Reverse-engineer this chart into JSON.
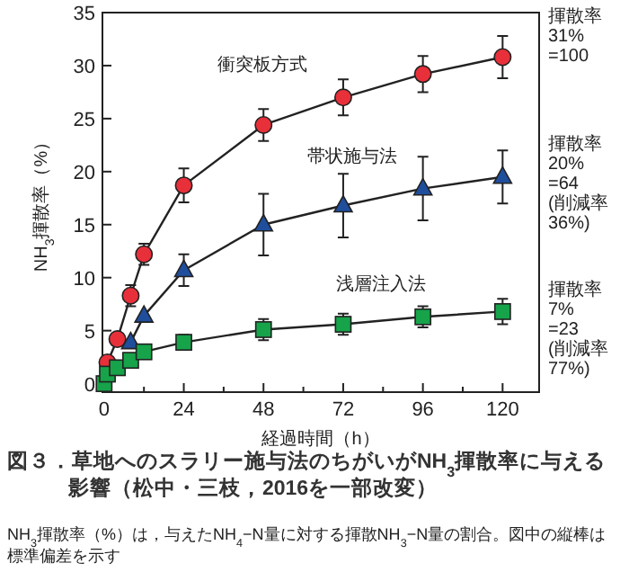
{
  "chart_data": {
    "type": "line",
    "title": "図３．草地へのスラリー施与法のちがいがNH$_{3}$揮散率に与える影響（松中・三枝，2016を一部改変）",
    "xlabel": "経過時間（h）",
    "ylabel": "NH$_{3}$揮散率（%）",
    "xlim": [
      -0.5,
      131
    ],
    "ylim": [
      -0.8,
      35
    ],
    "xticks": [
      0,
      {
        "value": 12,
        "label": null
      },
      24,
      {
        "value": 36,
        "label": null
      },
      48,
      {
        "value": 60,
        "label": null
      },
      72,
      {
        "value": 84,
        "label": null
      },
      96,
      {
        "value": 108,
        "label": null
      },
      120
    ],
    "yticks": [
      0,
      5,
      10,
      15,
      20,
      25,
      30,
      35
    ],
    "grid": false,
    "legend": false,
    "line_style": "solid",
    "series": [
      {
        "name": "衝突板方式",
        "color": "#e8303a",
        "marker": "circle",
        "x": [
          1,
          4,
          8,
          12,
          24,
          48,
          72,
          96,
          120
        ],
        "values": [
          2.0,
          4.2,
          8.3,
          12.2,
          18.7,
          24.4,
          27.0,
          29.2,
          30.8
        ],
        "errors": [
          null,
          null,
          1.0,
          1.0,
          1.6,
          1.5,
          1.7,
          1.7,
          2.0
        ]
      },
      {
        "name": "帯状施与法",
        "color": "#1f4e9c",
        "marker": "triangle",
        "x": [
          8,
          12,
          24,
          48,
          72,
          96,
          120
        ],
        "values": [
          3.9,
          6.4,
          10.7,
          15.0,
          16.8,
          18.4,
          19.5
        ],
        "errors": [
          null,
          null,
          1.5,
          2.9,
          3.0,
          3.0,
          2.5
        ]
      },
      {
        "name": "浅層注入法",
        "color": "#16a34a",
        "marker": "square",
        "x": [
          0,
          1,
          4,
          8,
          12,
          24,
          48,
          72,
          96,
          120
        ],
        "values": [
          0,
          0.9,
          1.5,
          2.2,
          3.0,
          3.9,
          5.1,
          5.6,
          6.3,
          6.8
        ],
        "errors": [
          null,
          null,
          null,
          null,
          null,
          0.7,
          1.0,
          1.0,
          1.0,
          1.2
        ]
      }
    ],
    "annotations": [
      "揮散率\n31%\n=100",
      "揮散率\n20%\n=64\n(削減率\n36%)",
      "揮散率\n7%\n=23\n(削減率\n77%)",
      "NH$_{3}$揮散率（%）は，与えたNH$_{4}$−N量に対する揮散NH$_{3}$−N量の割合。図中の縦棒は標準偏差を示す"
    ]
  }
}
